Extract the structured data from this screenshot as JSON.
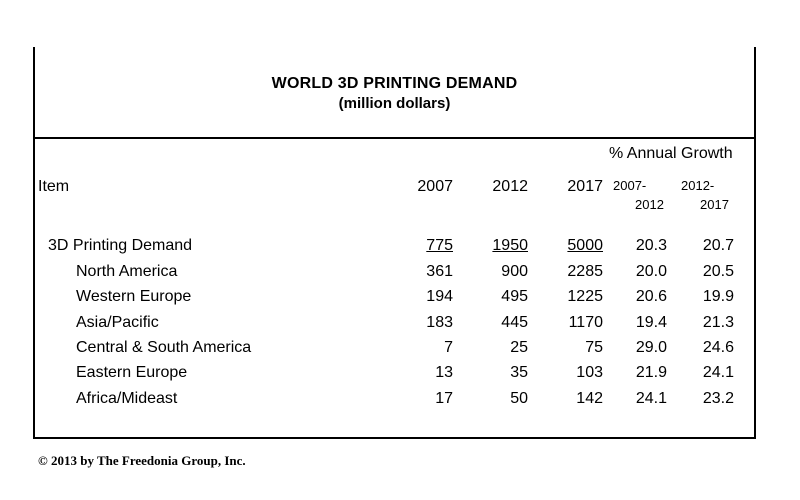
{
  "title": "WORLD 3D PRINTING DEMAND",
  "subtitle": "(million dollars)",
  "growth_header": "% Annual Growth",
  "columns": {
    "item": "Item",
    "y2007": "2007",
    "y2012": "2012",
    "y2017": "2017",
    "g1_top": "2007-",
    "g1_bottom": "2012",
    "g2_top": "2012-",
    "g2_bottom": "2017"
  },
  "rows": [
    {
      "item": "3D Printing Demand",
      "v2007": "775",
      "v2012": "1950",
      "v2017": "5000",
      "g1": "20.3",
      "g2": "20.7"
    },
    {
      "item": "North America",
      "v2007": "361",
      "v2012": "900",
      "v2017": "2285",
      "g1": "20.0",
      "g2": "20.5"
    },
    {
      "item": "Western Europe",
      "v2007": "194",
      "v2012": "495",
      "v2017": "1225",
      "g1": "20.6",
      "g2": "19.9"
    },
    {
      "item": "Asia/Pacific",
      "v2007": "183",
      "v2012": "445",
      "v2017": "1170",
      "g1": "19.4",
      "g2": "21.3"
    },
    {
      "item": "Central & South America",
      "v2007": "7",
      "v2012": "25",
      "v2017": "75",
      "g1": "29.0",
      "g2": "24.6"
    },
    {
      "item": "Eastern Europe",
      "v2007": "13",
      "v2012": "35",
      "v2017": "103",
      "g1": "21.9",
      "g2": "24.1"
    },
    {
      "item": "Africa/Mideast",
      "v2007": "17",
      "v2012": "50",
      "v2017": "142",
      "g1": "24.1",
      "g2": "23.2"
    }
  ],
  "footer": "© 2013 by The Freedonia Group, Inc."
}
